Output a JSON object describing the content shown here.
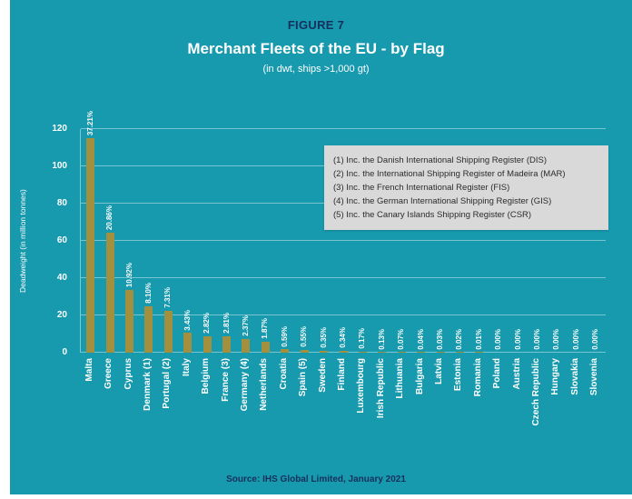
{
  "figure_label": "FIGURE 7",
  "title": "Merchant Fleets of the EU - by Flag",
  "subtitle": "(in dwt, ships >1,000 gt)",
  "source": "Source: IHS Global Limited, January 2021",
  "notes": [
    "(1) Inc. the Danish International Shipping Register (DIS)",
    "(2) Inc. the International Shipping Register of Madeira (MAR)",
    "(3) Inc. the French International Register (FIS)",
    "(4) Inc. the German International Shipping Register (GIS)",
    "(5) Inc. the Canary Islands Shipping Register (CSR)"
  ],
  "colors": {
    "background": "#1799ae",
    "bar": "#a3903f",
    "heading": "#16305e",
    "text": "#ffffff",
    "note_bg": "#d9d9d9",
    "note_text": "#2b2b2b"
  },
  "chart_data": {
    "type": "bar",
    "title": "Merchant Fleets of the EU - by Flag",
    "subtitle": "(in dwt, ships >1,000 gt)",
    "xlabel": "",
    "ylabel": "Deadweight (in million tonnes)",
    "ylim": [
      0,
      120
    ],
    "yticks": [
      0,
      20,
      40,
      60,
      80,
      100,
      120
    ],
    "grid": true,
    "legend_position": "none",
    "categories": [
      "Malta",
      "Greece",
      "Cyprus",
      "Denmark (1)",
      "Portugal (2)",
      "Italy",
      "Belgium",
      "France (3)",
      "Germany (4)",
      "Netherlands",
      "Croatia",
      "Spain (5)",
      "Sweden",
      "Finland",
      "Luxembourg",
      "Irish Republic",
      "Lithuania",
      "Bulgaria",
      "Latvia",
      "Estonia",
      "Romania",
      "Poland",
      "Austria",
      "Czech Republic",
      "Hungary",
      "Slovakia",
      "Slovenia"
    ],
    "values": [
      115.0,
      64.5,
      33.8,
      25.0,
      22.6,
      10.6,
      8.7,
      8.7,
      7.3,
      5.8,
      1.8,
      1.7,
      1.1,
      1.05,
      0.5,
      0.4,
      0.2,
      0.12,
      0.09,
      0.06,
      0.03,
      0.0,
      0.0,
      0.0,
      0.0,
      0.0,
      0.0
    ],
    "labels": [
      "37.21%",
      "20.86%",
      "10.92%",
      "8.10%",
      "7.31%",
      "3.43%",
      "2.82%",
      "2.81%",
      "2.37%",
      "1.87%",
      "0.59%",
      "0.55%",
      "0.35%",
      "0.34%",
      "0.17%",
      "0.13%",
      "0.07%",
      "0.04%",
      "0.03%",
      "0.02%",
      "0.01%",
      "0.00%",
      "0.00%",
      "0.00%",
      "0.00%",
      "0.00%",
      "0.00%"
    ]
  }
}
